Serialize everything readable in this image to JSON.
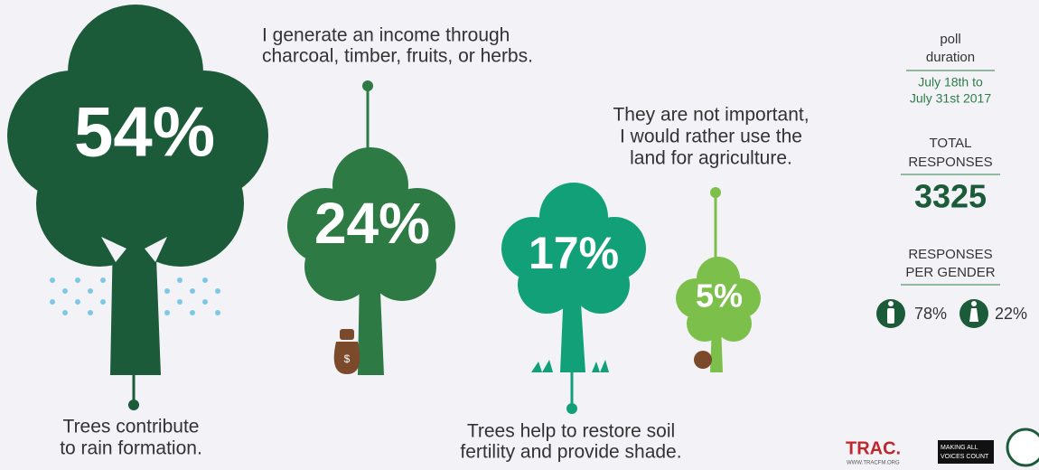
{
  "items": [
    {
      "label": "54%",
      "caption": [
        "Trees contribute",
        "to rain formation."
      ]
    },
    {
      "label": "24%",
      "caption": [
        "I generate an income through",
        "charcoal, timber, fruits, or herbs."
      ]
    },
    {
      "label": "17%",
      "caption": [
        "Trees help to restore soil",
        "fertility and provide shade."
      ]
    },
    {
      "label": "5%",
      "caption": [
        "They are not important,",
        "I would rather use the",
        "land for agriculture."
      ]
    }
  ],
  "sidebar": {
    "poll_label": [
      "poll",
      "duration"
    ],
    "poll_dates": [
      "July 18th to",
      "July 31st 2017"
    ],
    "total_label": [
      "TOTAL",
      "RESPONSES"
    ],
    "total": "3325",
    "gender_label": [
      "RESPONSES",
      "PER GENDER"
    ],
    "male": "78%",
    "female": "22%"
  },
  "logos": {
    "trac": "TRAC.",
    "trac_url": "WWW.TRACFM.ORG",
    "mavc": [
      "MAKING ALL",
      "VOICES COUNT"
    ]
  }
}
